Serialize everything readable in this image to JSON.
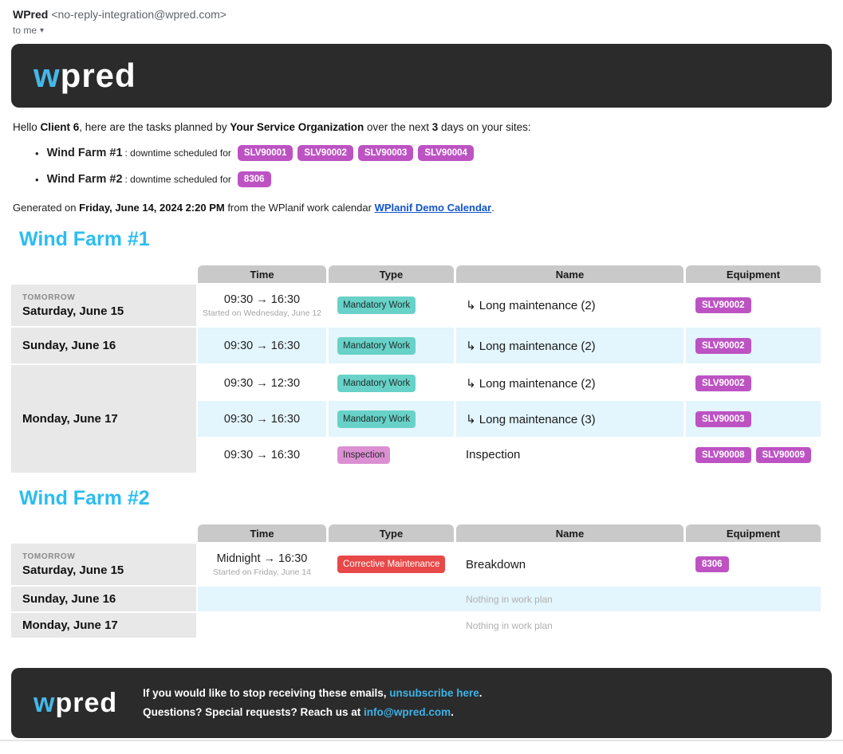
{
  "email_header": {
    "sender_name": "WPred",
    "sender_email": "<no-reply-integration@wpred.com>",
    "recipient": "to me"
  },
  "icons": {
    "bullet": "•",
    "dropdown_arrow": "▾"
  },
  "brand": {
    "logo_w": "w",
    "logo_rest": "pred"
  },
  "theme": {
    "header_bg": "#2b2b2b",
    "logo_blue": "#45b7e8",
    "heading_cyan": "#2bbdf0",
    "equipment_badge": "#bd53c3",
    "row_alt_blue": "#e3f5fd",
    "day_cell_gray": "#e8e8e8",
    "table_header_gray": "#c9c9c9",
    "link_blue": "#1155cc",
    "footer_link_blue": "#3db3e8"
  },
  "type_styles": {
    "Mandatory Work": {
      "bg": "#68d1c8",
      "fg": "#1e2e2c"
    },
    "Inspection": {
      "bg": "#dc8fd2",
      "fg": "#2a2a2a"
    },
    "Corrective Maintenance": {
      "bg": "#e84848",
      "fg": "#ffffff"
    }
  },
  "greeting": {
    "prefix": "Hello ",
    "client": "Client 6",
    "middle": ", here are the tasks planned by ",
    "org": "Your Service Organization",
    "after_org": " over the next ",
    "days": "3",
    "suffix": " days on your sites:"
  },
  "summary": [
    {
      "site": "Wind Farm #1",
      "text": ": downtime scheduled for",
      "badges": [
        "SLV90001",
        "SLV90002",
        "SLV90003",
        "SLV90004"
      ]
    },
    {
      "site": "Wind Farm #2",
      "text": ": downtime scheduled for",
      "badges": [
        "8306"
      ]
    }
  ],
  "generated": {
    "prefix": "Generated on ",
    "datetime": "Friday, June 14, 2024 2:20 PM",
    "middle": " from the WPlanif work calendar ",
    "link": "WPlanif Demo Calendar",
    "suffix": "."
  },
  "table_headers": [
    "Time",
    "Type",
    "Name",
    "Equipment"
  ],
  "sections": [
    {
      "title": "Wind Farm #1",
      "days": [
        {
          "tag": "TOMORROW",
          "date": "Saturday, June 15",
          "entries": [
            {
              "time": "09:30 → 16:30",
              "time_note": "Started on Wednesday, June 12",
              "type": "Mandatory Work",
              "name": "↳ Long maintenance (2)",
              "equipment": [
                "SLV90002"
              ]
            }
          ]
        },
        {
          "date": "Sunday, June 16",
          "entries": [
            {
              "time": "09:30 → 16:30",
              "type": "Mandatory Work",
              "name": "↳ Long maintenance (2)",
              "equipment": [
                "SLV90002"
              ]
            }
          ]
        },
        {
          "date": "Monday, June 17",
          "entries": [
            {
              "time": "09:30 → 12:30",
              "type": "Mandatory Work",
              "name": "↳ Long maintenance (2)",
              "equipment": [
                "SLV90002"
              ]
            },
            {
              "time": "09:30 → 16:30",
              "type": "Mandatory Work",
              "name": "↳ Long maintenance (3)",
              "equipment": [
                "SLV90003"
              ]
            },
            {
              "time": "09:30 → 16:30",
              "type": "Inspection",
              "name": "Inspection",
              "equipment": [
                "SLV90008",
                "SLV90009"
              ]
            }
          ]
        }
      ]
    },
    {
      "title": "Wind Farm #2",
      "days": [
        {
          "tag": "TOMORROW",
          "date": "Saturday, June 15",
          "entries": [
            {
              "time": "Midnight → 16:30",
              "time_note": "Started on Friday, June 14",
              "type": "Corrective Maintenance",
              "name": "Breakdown",
              "equipment": [
                "8306"
              ]
            }
          ]
        },
        {
          "date": "Sunday, June 16",
          "entries": [],
          "empty": "Nothing in work plan"
        },
        {
          "date": "Monday, June 17",
          "entries": [],
          "empty": "Nothing in work plan"
        }
      ]
    }
  ],
  "footer": {
    "line1_prefix": "If you would like to stop receiving these emails, ",
    "unsubscribe_link": "unsubscribe here",
    "line1_suffix": ".",
    "line2_prefix": "Questions? Special requests? Reach us at ",
    "email_link": "info@wpred.com",
    "line2_suffix": "."
  }
}
